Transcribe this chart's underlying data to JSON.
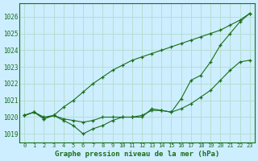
{
  "title": "Graphe pression niveau de la mer (hPa)",
  "bg_color": "#cceeff",
  "grid_color": "#b8ddd0",
  "line_color": "#1a6e1a",
  "x_labels": [
    "0",
    "1",
    "2",
    "3",
    "4",
    "5",
    "6",
    "7",
    "8",
    "9",
    "10",
    "11",
    "12",
    "13",
    "14",
    "15",
    "16",
    "17",
    "18",
    "19",
    "20",
    "21",
    "22",
    "23"
  ],
  "ylim": [
    1018.5,
    1026.8
  ],
  "yticks": [
    1019,
    1020,
    1021,
    1022,
    1023,
    1024,
    1025,
    1026
  ],
  "line1": [
    1020.1,
    1020.3,
    1020.0,
    1020.1,
    1020.6,
    1021.0,
    1021.5,
    1022.0,
    1022.4,
    1022.8,
    1023.1,
    1023.4,
    1023.6,
    1023.8,
    1024.0,
    1024.2,
    1024.4,
    1024.6,
    1024.8,
    1025.0,
    1025.2,
    1025.5,
    1025.8,
    1026.2
  ],
  "line2": [
    1020.1,
    1020.3,
    1019.9,
    1020.1,
    1019.9,
    1019.8,
    1019.7,
    1019.8,
    1020.0,
    1020.0,
    1020.0,
    1020.0,
    1020.1,
    1020.4,
    1020.4,
    1020.3,
    1021.1,
    1022.2,
    1022.5,
    1023.3,
    1024.3,
    1025.0,
    1025.7,
    1026.2
  ],
  "line3": [
    1020.1,
    1020.3,
    1019.9,
    1020.1,
    1019.8,
    1019.5,
    1019.0,
    1019.3,
    1019.5,
    1019.8,
    1020.0,
    1020.0,
    1020.0,
    1020.5,
    1020.4,
    1020.3,
    1020.5,
    1020.8,
    1021.2,
    1021.6,
    1022.2,
    1022.8,
    1023.3,
    1023.4
  ]
}
